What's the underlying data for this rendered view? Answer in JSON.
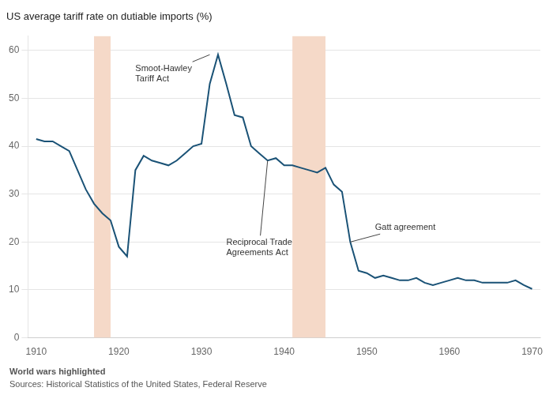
{
  "chart_data": {
    "type": "line",
    "title": "US average tariff rate on dutiable imports (%)",
    "x": [
      1910,
      1911,
      1912,
      1913,
      1914,
      1915,
      1916,
      1917,
      1918,
      1919,
      1920,
      1921,
      1922,
      1923,
      1924,
      1925,
      1926,
      1927,
      1928,
      1929,
      1930,
      1931,
      1932,
      1933,
      1934,
      1935,
      1936,
      1937,
      1938,
      1939,
      1940,
      1941,
      1942,
      1943,
      1944,
      1945,
      1946,
      1947,
      1948,
      1949,
      1950,
      1951,
      1952,
      1953,
      1954,
      1955,
      1956,
      1957,
      1958,
      1959,
      1960,
      1961,
      1962,
      1963,
      1964,
      1965,
      1966,
      1967,
      1968,
      1969,
      1970
    ],
    "values": [
      41.5,
      41.0,
      41.0,
      40.0,
      39.0,
      35.0,
      31.0,
      28.0,
      26.0,
      24.5,
      19.0,
      17.0,
      35.0,
      38.0,
      37.0,
      36.5,
      36.0,
      37.0,
      38.5,
      40.0,
      40.5,
      53.0,
      59.1,
      53.0,
      46.5,
      46.0,
      40.0,
      38.5,
      37.0,
      37.5,
      36.0,
      36.0,
      35.5,
      35.0,
      34.5,
      35.5,
      32.0,
      30.5,
      20.0,
      14.0,
      13.5,
      12.5,
      13.0,
      12.5,
      12.0,
      12.0,
      12.5,
      11.5,
      11.0,
      11.5,
      12.0,
      12.5,
      12.0,
      12.0,
      11.5,
      11.5,
      11.5,
      11.5,
      12.0,
      11.0,
      10.2
    ],
    "color": "#1a5276",
    "xlim": [
      1909,
      1971
    ],
    "ylim": [
      0,
      63
    ],
    "xticks": [
      1910,
      1920,
      1930,
      1940,
      1950,
      1960,
      1970
    ],
    "yticks": [
      0,
      10,
      20,
      30,
      40,
      50,
      60
    ],
    "grid": "y",
    "bands": [
      {
        "start": 1917,
        "end": 1919,
        "color": "#f5d9c8"
      },
      {
        "start": 1941,
        "end": 1945,
        "color": "#f5d9c8"
      }
    ],
    "annotations": [
      {
        "text": "Smoot-Hawley\nTariff Act",
        "x": 1922,
        "y": 53,
        "arrow_x": 1931,
        "arrow_y": 59.1
      },
      {
        "text": "Reciprocal Trade\nAgreements Act",
        "x": 1933,
        "y": 21,
        "arrow_x": 1938,
        "arrow_y": 37.0
      },
      {
        "text": "Gatt agreement",
        "x": 1951,
        "y": 22,
        "arrow_x": 1948,
        "arrow_y": 20.0
      }
    ],
    "footnotes": [
      "World wars highlighted",
      "Sources: Historical Statistics of the United States, Federal Reserve"
    ]
  }
}
